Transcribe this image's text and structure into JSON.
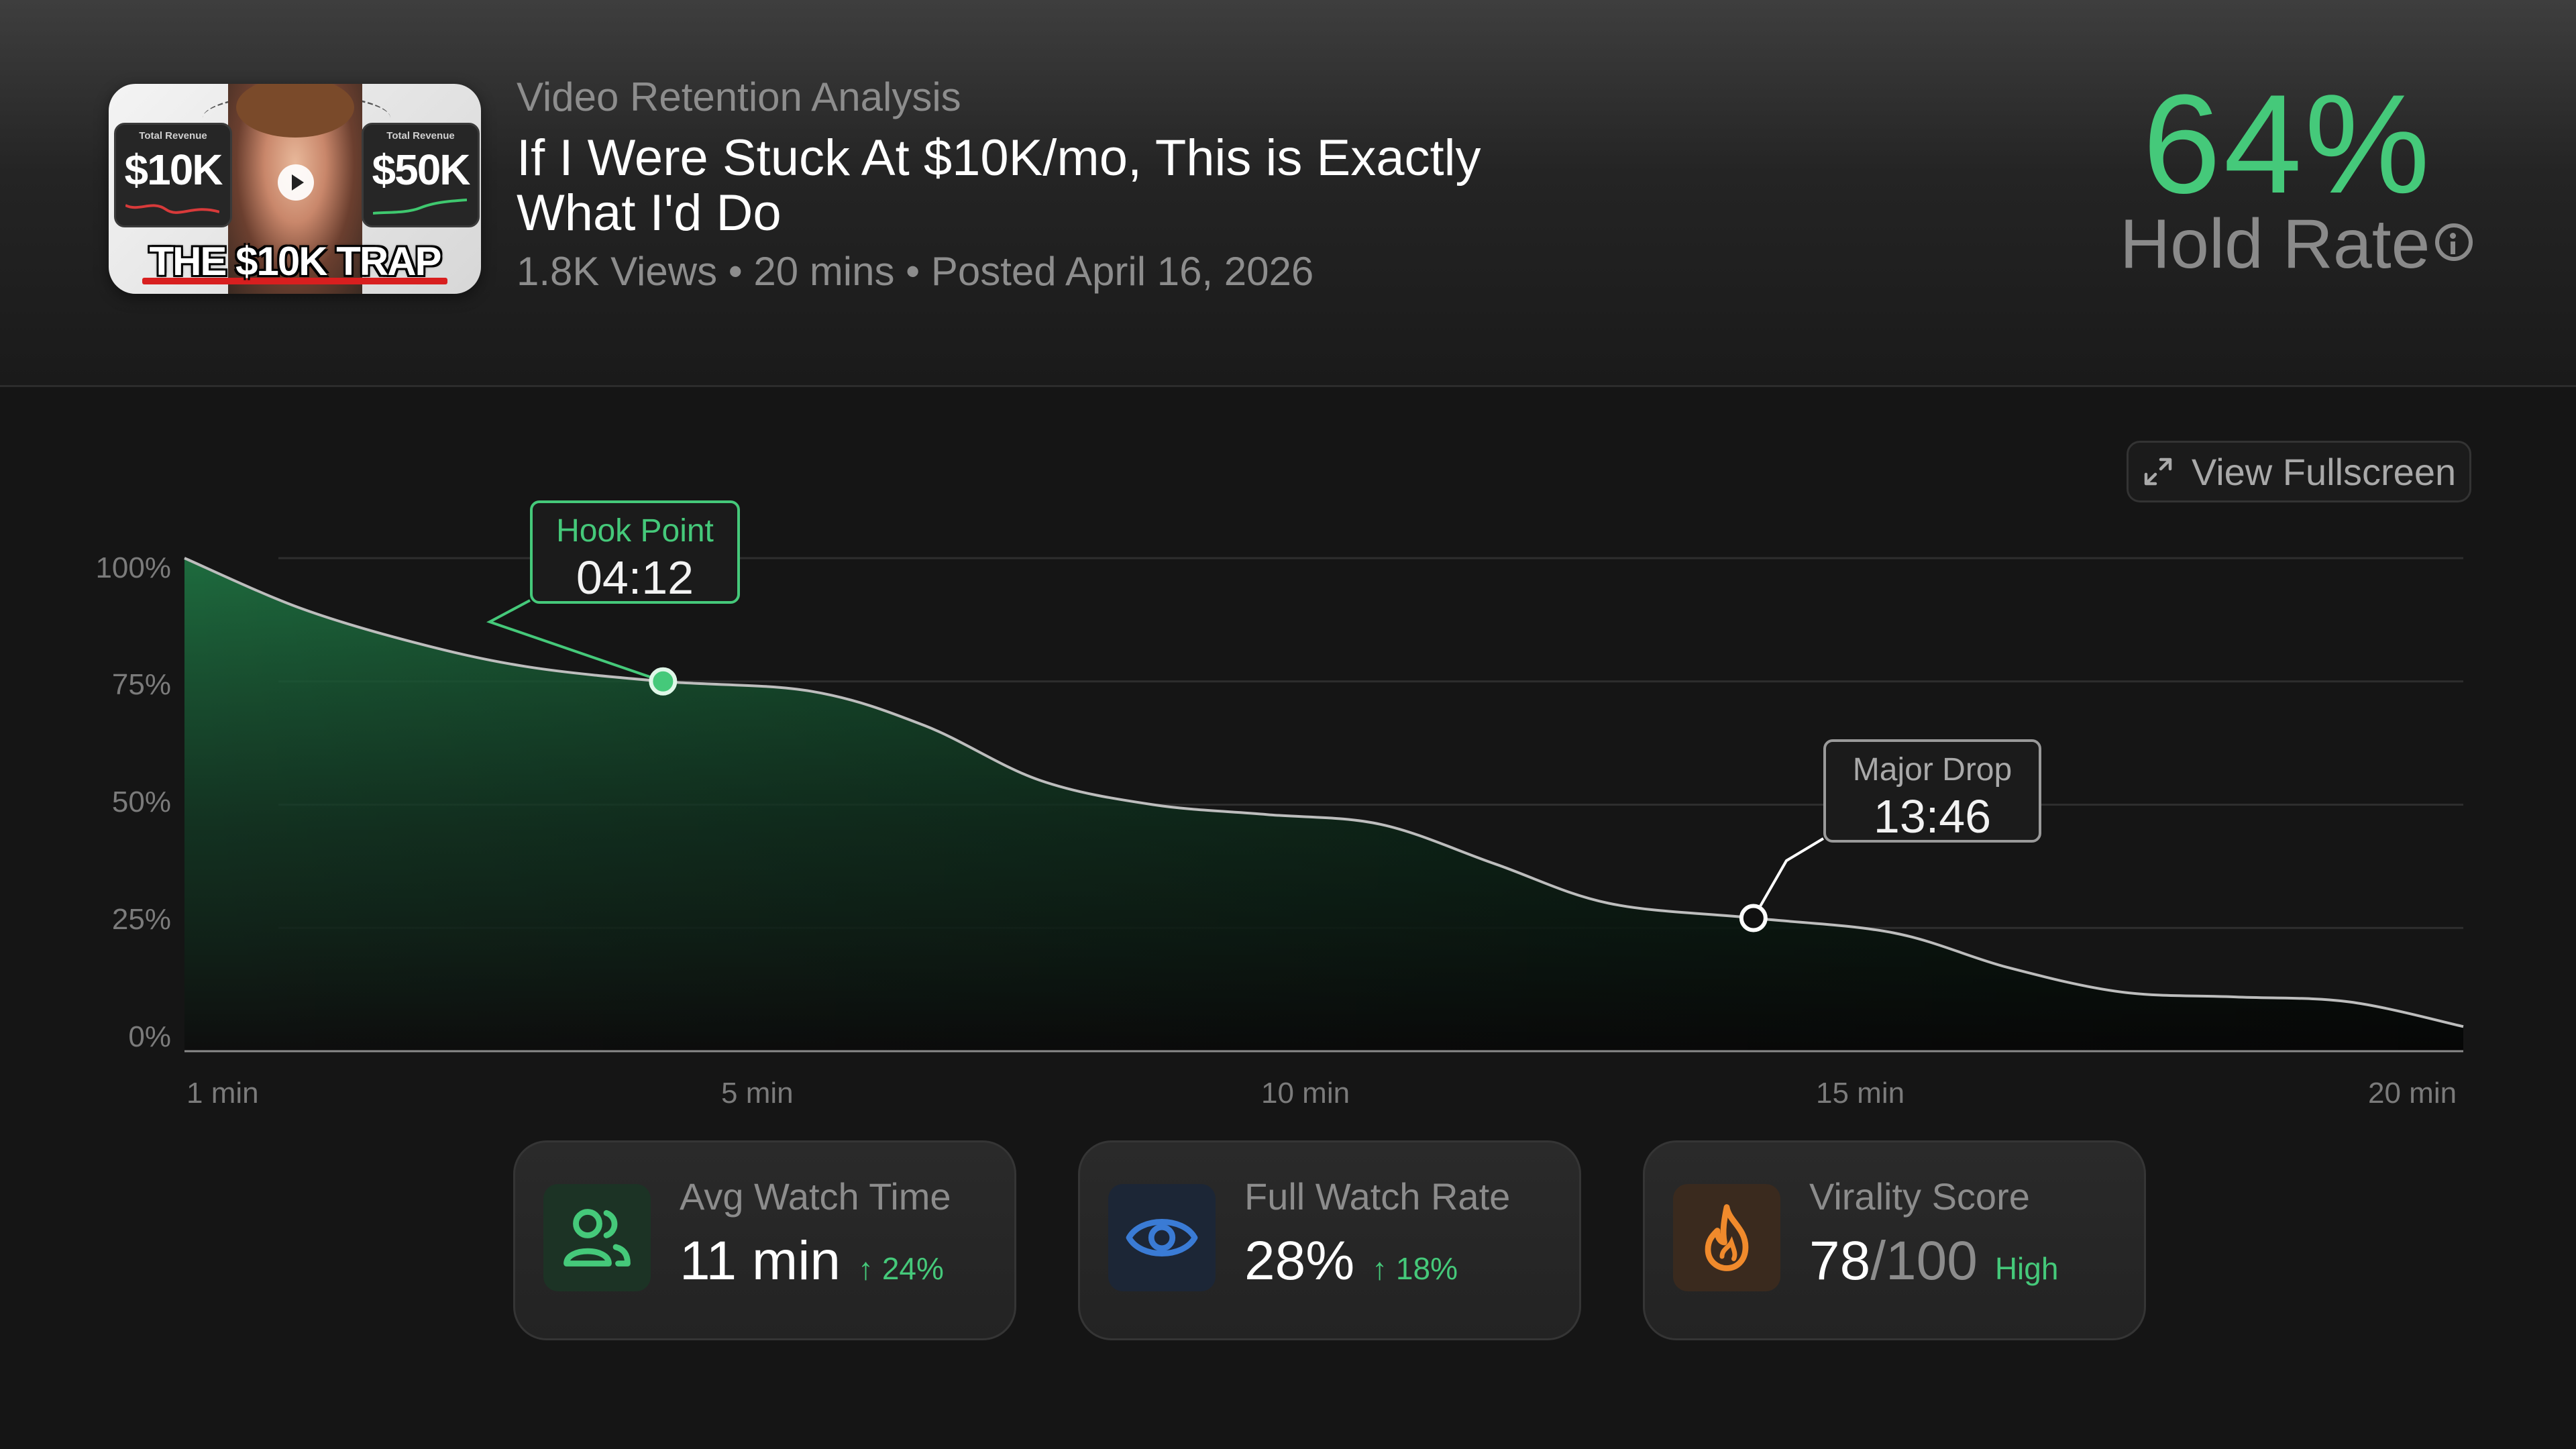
{
  "video": {
    "eyebrow": "Video Retention Analysis",
    "title_line1": "If I Were Stuck At $10K/mo, This is Exactly",
    "title_line2": "What I'd Do",
    "meta": "1.8K Views • 20 mins • Posted April 16, 2026"
  },
  "thumbnail": {
    "left_tag": "Total Revenue",
    "left_amount": "$10K",
    "right_tag": "Total Revenue",
    "right_amount": "$50K",
    "banner": "THE $10K TRAP"
  },
  "hold_rate": {
    "value": "64%",
    "label": "Hold Rate",
    "info_icon": "info-icon"
  },
  "fullscreen_button": {
    "label": "View Fullscreen",
    "icon": "expand-arrows-icon"
  },
  "chart_data": {
    "type": "area",
    "title": "",
    "xlabel": "",
    "ylabel": "",
    "xlim": [
      0,
      20
    ],
    "ylim": [
      0,
      100
    ],
    "x_tick_labels": [
      "1 min",
      "5 min",
      "10 min",
      "15 min",
      "20 min"
    ],
    "y_ticks": [
      100,
      75,
      50,
      25,
      0
    ],
    "y_tick_labels": [
      "100%",
      "75%",
      "50%",
      "25%",
      "0%"
    ],
    "grid": true,
    "line_color": "#bdbdbd",
    "fill_color": "#1d6b3c",
    "series": [
      {
        "x": [
          0,
          1,
          2,
          3,
          4.2,
          5.5,
          6.5,
          7.5,
          8.5,
          9.5,
          10.5,
          11.5,
          12.5,
          13.77,
          15,
          16,
          17,
          18,
          19,
          20
        ],
        "y": [
          100,
          90,
          83,
          78,
          75,
          73,
          66,
          55,
          50,
          48,
          46,
          38,
          30,
          27,
          24,
          17,
          12,
          11,
          10,
          5
        ]
      }
    ],
    "annotations": [
      {
        "label": "Hook Point",
        "time": "04:12",
        "x": 4.2,
        "y": 75,
        "color": "#45c97a"
      },
      {
        "label": "Major Drop",
        "time": "13:46",
        "x": 13.77,
        "y": 27,
        "color": "#ffffff"
      }
    ]
  },
  "stats": [
    {
      "title": "Avg Watch Time",
      "value": "11 min",
      "suffix": "",
      "delta": "↑ 24%",
      "icon": "users-icon",
      "accent": "#45c97a",
      "icon_bg": "#1c3325"
    },
    {
      "title": "Full Watch Rate",
      "value": "28%",
      "suffix": "",
      "delta": "↑ 18%",
      "icon": "eye-icon",
      "accent": "#3a7bd5",
      "icon_bg": "#1c2636"
    },
    {
      "title": "Virality Score",
      "value": "78",
      "suffix": "/100",
      "delta": "High",
      "icon": "flame-icon",
      "accent": "#f08a2c",
      "icon_bg": "#3a2a1e"
    }
  ]
}
